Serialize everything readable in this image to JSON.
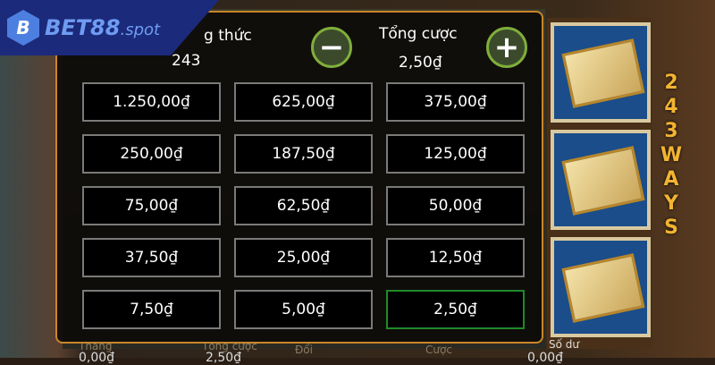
{
  "logo": {
    "mark": "B",
    "name": "BET88",
    "suffix": ".spot"
  },
  "header": {
    "ways_label": "g thức",
    "ways_value": "243",
    "total_bet_label": "Tổng cược",
    "total_bet_value": "2,50₫",
    "minus_icon": "minus-icon",
    "plus_icon": "plus-icon"
  },
  "bet_options": [
    {
      "label": "1.250,00₫"
    },
    {
      "label": "625,00₫"
    },
    {
      "label": "375,00₫"
    },
    {
      "label": "250,00₫"
    },
    {
      "label": "187,50₫"
    },
    {
      "label": "125,00₫"
    },
    {
      "label": "75,00₫"
    },
    {
      "label": "62,50₫"
    },
    {
      "label": "50,00₫"
    },
    {
      "label": "37,50₫"
    },
    {
      "label": "25,00₫"
    },
    {
      "label": "12,50₫"
    },
    {
      "label": "7,50₫"
    },
    {
      "label": "5,00₫"
    },
    {
      "label": "2,50₫",
      "selected": true
    }
  ],
  "ways_banner": [
    "2",
    "4",
    "3",
    "W",
    "A",
    "Y",
    "S"
  ],
  "bottom_bar": {
    "win_label": "Thắng",
    "win_value": "0,00₫",
    "bet_label": "Tổng cược",
    "bet_value": "2,50₫",
    "change_label": "Đổi",
    "bet_button": "Cược",
    "balance_label": "Số dư",
    "balance_value": "0,00₫"
  },
  "colors": {
    "selected_border": "#1f8a2a",
    "panel_border": "#c9862a",
    "button_ring": "#7fae3a"
  }
}
